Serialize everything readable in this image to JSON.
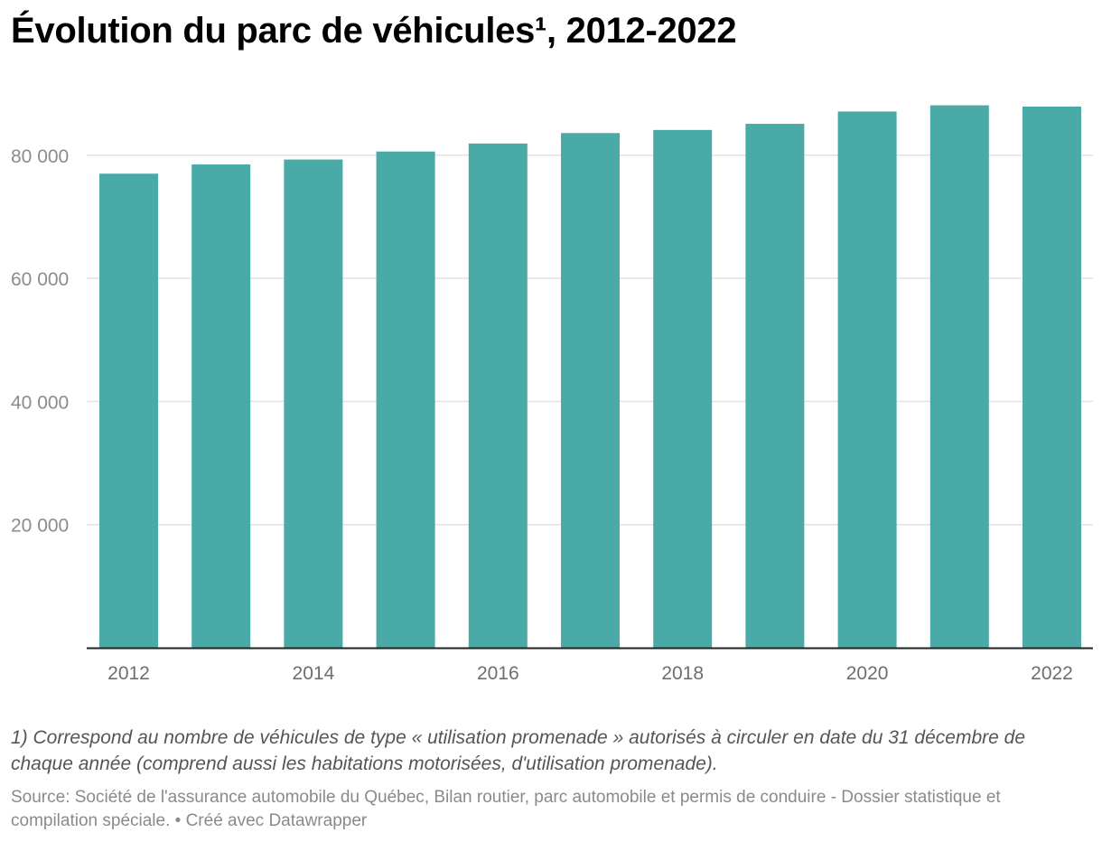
{
  "title": "Évolution du parc de véhicules¹, 2012-2022",
  "footnote": "1) Correspond au nombre de véhicules de type « utilisation promenade » autorisés à circuler en date du 31 décembre de chaque année (comprend aussi les habitations motorisées, d'utilisation promenade).",
  "source": "Source: Société de l'assurance automobile du Québec, Bilan routier, parc automobile et permis de conduire - Dossier statistique et compilation spéciale. • Créé avec Datawrapper",
  "colors": {
    "bar": "#49aaa7",
    "grid": "#e2e2e2",
    "axis": "#222222"
  },
  "chart_data": {
    "type": "bar",
    "categories": [
      "2012",
      "2013",
      "2014",
      "2015",
      "2016",
      "2017",
      "2018",
      "2019",
      "2020",
      "2021",
      "2022"
    ],
    "values": [
      77000,
      78500,
      79300,
      80600,
      81900,
      83600,
      84100,
      85100,
      87100,
      88100,
      87900
    ],
    "xtick_labels": [
      "2012",
      "2014",
      "2016",
      "2018",
      "2020",
      "2022"
    ],
    "ytick_values": [
      20000,
      40000,
      60000,
      80000
    ],
    "ytick_labels": [
      "20 000",
      "40 000",
      "60 000",
      "80 000"
    ],
    "ylim": [
      0,
      90000
    ],
    "grid": true,
    "xlabel": "",
    "ylabel": ""
  }
}
